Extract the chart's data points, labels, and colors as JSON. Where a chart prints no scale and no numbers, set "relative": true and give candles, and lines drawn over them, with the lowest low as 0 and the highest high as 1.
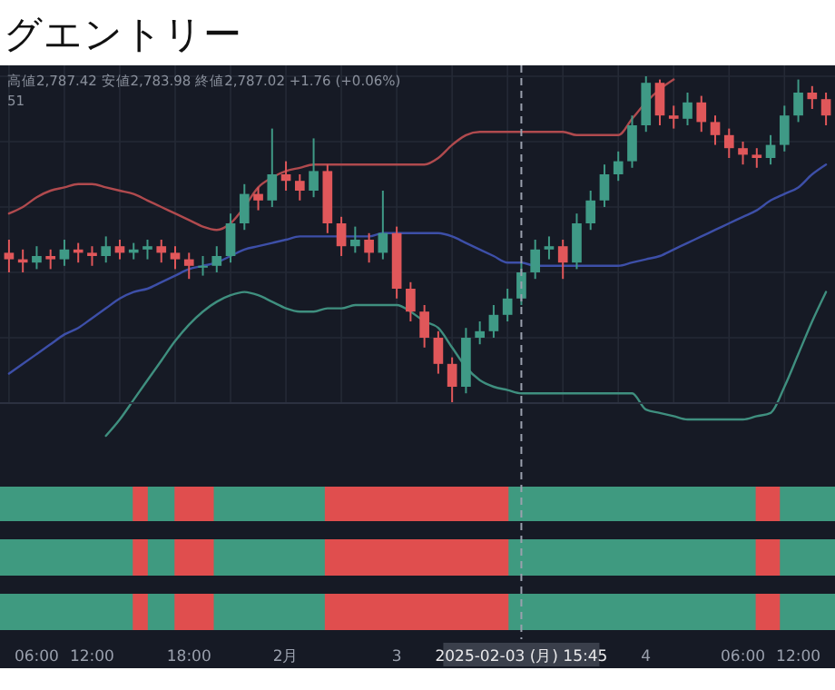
{
  "chart_data": {
    "type": "candlestick",
    "title": "グエントリー",
    "relative": true,
    "annotations": [
      "高値2,787.42 安値2,783.98 終値2,787.02 +1.76 (+0.06%)",
      "51"
    ],
    "categories": [
      null,
      null,
      "06:00",
      null,
      null,
      null,
      "12:00",
      null,
      null,
      null,
      null,
      null,
      null,
      "18:00",
      null,
      null,
      null,
      null,
      null,
      null,
      "2月",
      null,
      null,
      null,
      null,
      null,
      null,
      null,
      "3",
      null,
      null,
      null,
      null,
      null,
      null,
      null,
      null,
      "2025-02-03 (月)  15:45",
      null,
      null,
      null,
      null,
      null,
      null,
      null,
      null,
      "4",
      null,
      null,
      null,
      null,
      null,
      null,
      "06:00",
      null,
      null,
      null,
      "12:00",
      null,
      null
    ],
    "ohlc": [
      [
        0.46,
        0.5,
        0.4,
        0.44
      ],
      [
        0.44,
        0.47,
        0.4,
        0.43
      ],
      [
        0.43,
        0.48,
        0.41,
        0.45
      ],
      [
        0.45,
        0.47,
        0.41,
        0.44
      ],
      [
        0.44,
        0.5,
        0.42,
        0.47
      ],
      [
        0.47,
        0.49,
        0.43,
        0.46
      ],
      [
        0.46,
        0.48,
        0.42,
        0.45
      ],
      [
        0.45,
        0.51,
        0.43,
        0.48
      ],
      [
        0.48,
        0.5,
        0.44,
        0.46
      ],
      [
        0.46,
        0.49,
        0.44,
        0.47
      ],
      [
        0.47,
        0.5,
        0.44,
        0.48
      ],
      [
        0.48,
        0.5,
        0.43,
        0.46
      ],
      [
        0.46,
        0.48,
        0.41,
        0.44
      ],
      [
        0.44,
        0.46,
        0.38,
        0.42
      ],
      [
        0.42,
        0.45,
        0.39,
        0.42
      ],
      [
        0.42,
        0.48,
        0.4,
        0.45
      ],
      [
        0.45,
        0.58,
        0.43,
        0.55
      ],
      [
        0.55,
        0.67,
        0.53,
        0.64
      ],
      [
        0.64,
        0.66,
        0.59,
        0.62
      ],
      [
        0.62,
        0.84,
        0.6,
        0.7
      ],
      [
        0.7,
        0.74,
        0.65,
        0.68
      ],
      [
        0.68,
        0.7,
        0.62,
        0.65
      ],
      [
        0.65,
        0.81,
        0.63,
        0.71
      ],
      [
        0.71,
        0.73,
        0.52,
        0.55
      ],
      [
        0.55,
        0.57,
        0.45,
        0.48
      ],
      [
        0.48,
        0.54,
        0.46,
        0.5
      ],
      [
        0.5,
        0.52,
        0.43,
        0.46
      ],
      [
        0.46,
        0.65,
        0.44,
        0.52
      ],
      [
        0.52,
        0.54,
        0.32,
        0.35
      ],
      [
        0.35,
        0.37,
        0.25,
        0.28
      ],
      [
        0.28,
        0.3,
        0.17,
        0.2
      ],
      [
        0.2,
        0.22,
        0.09,
        0.12
      ],
      [
        0.12,
        0.14,
        0.0,
        0.05
      ],
      [
        0.05,
        0.23,
        0.03,
        0.2
      ],
      [
        0.2,
        0.25,
        0.18,
        0.22
      ],
      [
        0.22,
        0.3,
        0.2,
        0.27
      ],
      [
        0.27,
        0.35,
        0.25,
        0.32
      ],
      [
        0.32,
        0.43,
        0.3,
        0.4
      ],
      [
        0.4,
        0.5,
        0.38,
        0.47
      ],
      [
        0.47,
        0.51,
        0.44,
        0.48
      ],
      [
        0.48,
        0.5,
        0.38,
        0.43
      ],
      [
        0.43,
        0.58,
        0.41,
        0.55
      ],
      [
        0.55,
        0.65,
        0.53,
        0.62
      ],
      [
        0.62,
        0.73,
        0.6,
        0.7
      ],
      [
        0.7,
        0.77,
        0.68,
        0.74
      ],
      [
        0.74,
        0.88,
        0.72,
        0.85
      ],
      [
        0.85,
        1.0,
        0.83,
        0.98
      ],
      [
        0.98,
        0.99,
        0.85,
        0.88
      ],
      [
        0.88,
        0.91,
        0.84,
        0.87
      ],
      [
        0.87,
        0.95,
        0.85,
        0.92
      ],
      [
        0.92,
        0.94,
        0.83,
        0.86
      ],
      [
        0.86,
        0.88,
        0.79,
        0.82
      ],
      [
        0.82,
        0.84,
        0.75,
        0.78
      ],
      [
        0.78,
        0.8,
        0.73,
        0.76
      ],
      [
        0.76,
        0.78,
        0.72,
        0.75
      ],
      [
        0.75,
        0.82,
        0.73,
        0.79
      ],
      [
        0.79,
        0.91,
        0.77,
        0.88
      ],
      [
        0.88,
        0.99,
        0.86,
        0.95
      ],
      [
        0.95,
        0.97,
        0.9,
        0.93
      ],
      [
        0.93,
        0.95,
        0.85,
        0.88
      ]
    ],
    "colors": [
      "#e0575a",
      "#e0575a",
      "#3f9a86",
      "#e0575a",
      "#3f9a86",
      "#e0575a",
      "#e0575a",
      "#3f9a86",
      "#e0575a",
      "#3f9a86",
      "#3f9a86",
      "#e0575a",
      "#e0575a",
      "#e0575a",
      "#3f9a86",
      "#3f9a86",
      "#3f9a86",
      "#3f9a86",
      "#e0575a",
      "#3f9a86",
      "#e0575a",
      "#e0575a",
      "#3f9a86",
      "#e0575a",
      "#e0575a",
      "#3f9a86",
      "#e0575a",
      "#3f9a86",
      "#e0575a",
      "#e0575a",
      "#e0575a",
      "#e0575a",
      "#e0575a",
      "#3f9a86",
      "#3f9a86",
      "#3f9a86",
      "#3f9a86",
      "#3f9a86",
      "#3f9a86",
      "#3f9a86",
      "#e0575a",
      "#3f9a86",
      "#3f9a86",
      "#3f9a86",
      "#3f9a86",
      "#3f9a86",
      "#3f9a86",
      "#e0575a",
      "#e0575a",
      "#3f9a86",
      "#e0575a",
      "#e0575a",
      "#e0575a",
      "#e0575a",
      "#e0575a",
      "#3f9a86",
      "#3f9a86",
      "#3f9a86",
      "#e0575a",
      "#e0575a"
    ],
    "series": [
      {
        "type": "line",
        "color": "#b04a4e",
        "values": [
          0.58,
          0.6,
          0.63,
          0.65,
          0.66,
          0.67,
          0.67,
          0.66,
          0.65,
          0.64,
          0.62,
          0.6,
          0.58,
          0.56,
          0.54,
          0.53,
          0.55,
          0.6,
          0.66,
          0.69,
          0.71,
          0.72,
          0.73,
          0.73,
          0.73,
          0.73,
          0.73,
          0.73,
          0.73,
          0.73,
          0.73,
          0.75,
          0.79,
          0.82,
          0.83,
          0.83,
          0.83,
          0.83,
          0.83,
          0.83,
          0.83,
          0.82,
          0.82,
          0.82,
          0.82,
          0.87,
          0.92,
          0.96,
          0.99,
          null,
          null,
          null,
          null,
          null,
          null,
          null,
          null,
          null,
          null,
          null
        ]
      },
      {
        "type": "line",
        "color": "#3d4fa8",
        "values": [
          0.09,
          0.12,
          0.15,
          0.18,
          0.21,
          0.23,
          0.26,
          0.29,
          0.32,
          0.34,
          0.35,
          0.37,
          0.39,
          0.41,
          0.42,
          0.43,
          0.45,
          0.47,
          0.48,
          0.49,
          0.5,
          0.51,
          0.51,
          0.51,
          0.51,
          0.51,
          0.51,
          0.52,
          0.52,
          0.52,
          0.52,
          0.52,
          0.51,
          0.49,
          0.47,
          0.45,
          0.43,
          0.43,
          0.42,
          0.42,
          0.42,
          0.42,
          0.42,
          0.42,
          0.42,
          0.43,
          0.44,
          0.45,
          0.47,
          0.49,
          0.51,
          0.53,
          0.55,
          0.57,
          0.59,
          0.62,
          0.64,
          0.66,
          0.7,
          0.73
        ]
      },
      {
        "type": "line",
        "color": "#3f8f7f",
        "values": [
          null,
          null,
          null,
          null,
          null,
          null,
          null,
          -0.1,
          -0.05,
          0.01,
          0.07,
          0.13,
          0.19,
          0.24,
          0.28,
          0.31,
          0.33,
          0.34,
          0.33,
          0.31,
          0.29,
          0.28,
          0.28,
          0.29,
          0.29,
          0.3,
          0.3,
          0.3,
          0.3,
          0.28,
          0.25,
          0.23,
          0.17,
          0.11,
          0.07,
          0.05,
          0.04,
          0.03,
          0.03,
          0.03,
          0.03,
          0.03,
          0.03,
          0.03,
          0.03,
          0.03,
          -0.02,
          -0.03,
          -0.04,
          -0.05,
          -0.05,
          -0.05,
          -0.05,
          -0.05,
          -0.04,
          -0.03,
          0.05,
          0.15,
          0.25,
          0.34
        ]
      }
    ],
    "ref_lines": [
      {
        "axis": "x",
        "value": "2025-02-03 (月)  15:45",
        "line_style": "dashed",
        "color": "#9aa0ad"
      }
    ],
    "grid": true
  }
}
